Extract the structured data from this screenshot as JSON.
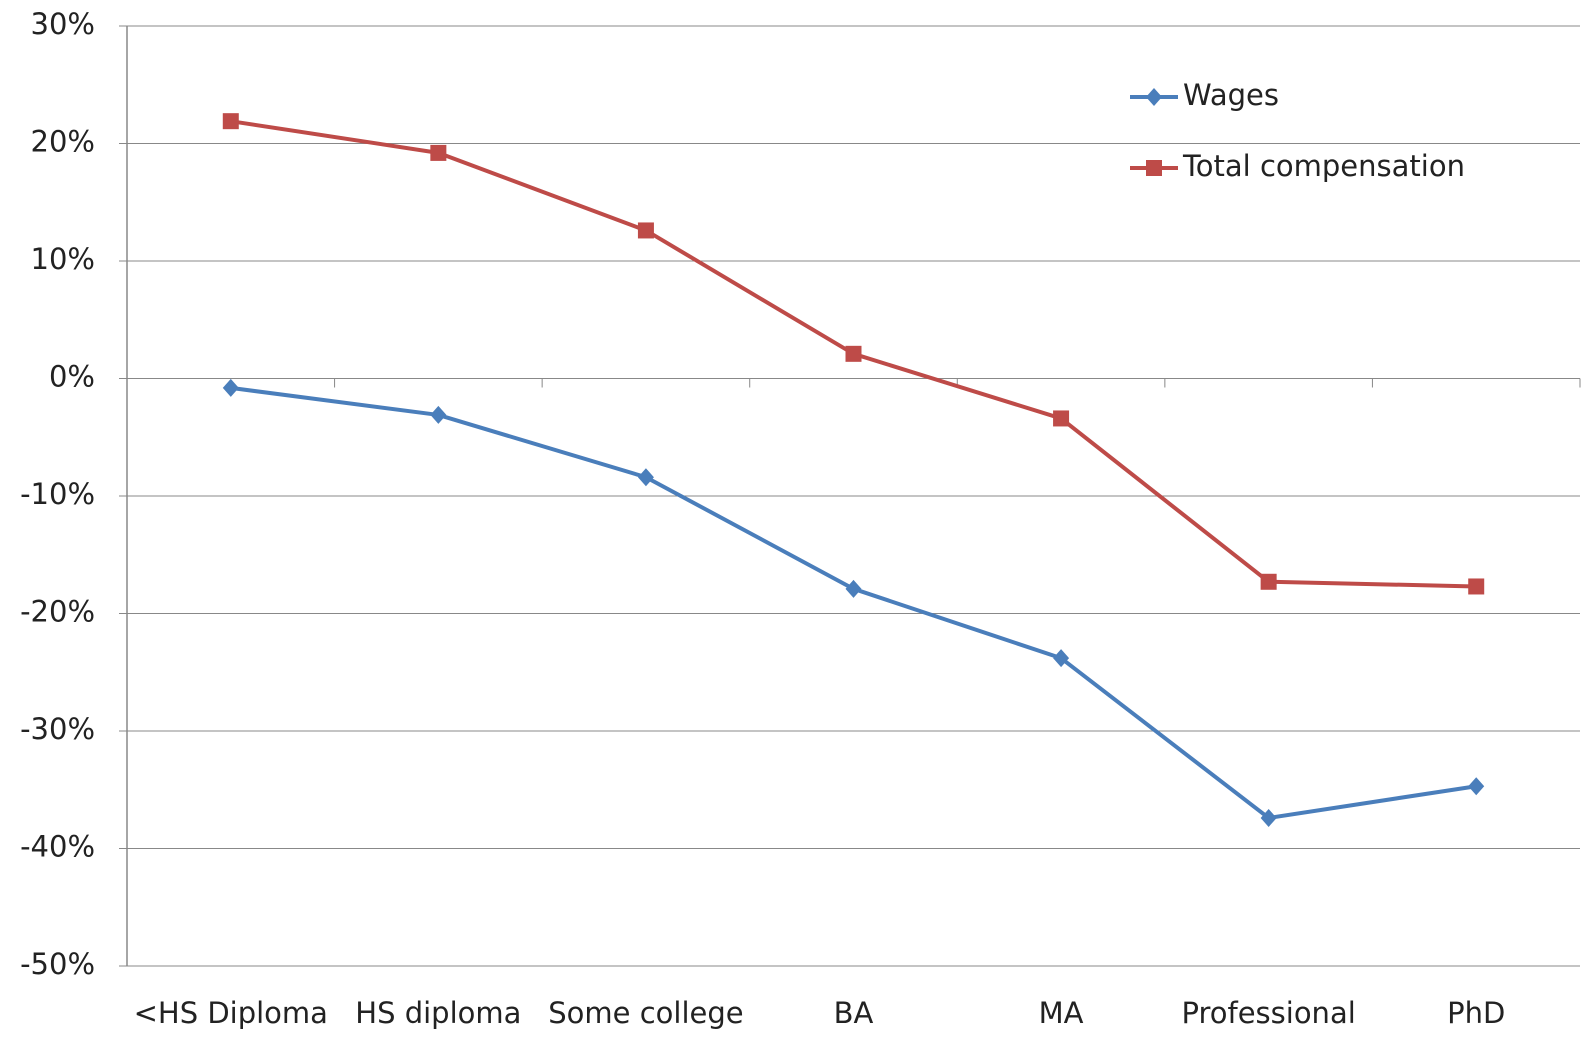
{
  "chart_data": {
    "type": "line",
    "categories": [
      "<HS Diploma",
      "HS diploma",
      "Some college",
      "BA",
      "MA",
      "Professional",
      "PhD"
    ],
    "series": [
      {
        "name": "Wages",
        "color": "#4a7ebb",
        "marker": "diamond",
        "values": [
          -0.8,
          -3.1,
          -8.4,
          -17.9,
          -23.8,
          -37.4,
          -34.7
        ]
      },
      {
        "name": "Total compensation",
        "color": "#be4b48",
        "marker": "square",
        "values": [
          21.9,
          19.2,
          12.6,
          2.1,
          -3.4,
          -17.3,
          -17.7
        ]
      }
    ],
    "ylim": [
      -50,
      30
    ],
    "yticks": [
      {
        "value": -50,
        "label": "-50%"
      },
      {
        "value": -40,
        "label": "-40%"
      },
      {
        "value": -30,
        "label": "-30%"
      },
      {
        "value": -20,
        "label": "-20%"
      },
      {
        "value": -10,
        "label": "-10%"
      },
      {
        "value": 0,
        "label": "0%"
      },
      {
        "value": 10,
        "label": "10%"
      },
      {
        "value": 20,
        "label": "20%"
      },
      {
        "value": 30,
        "label": "30%"
      }
    ],
    "grid": true,
    "legend": "top-right"
  }
}
